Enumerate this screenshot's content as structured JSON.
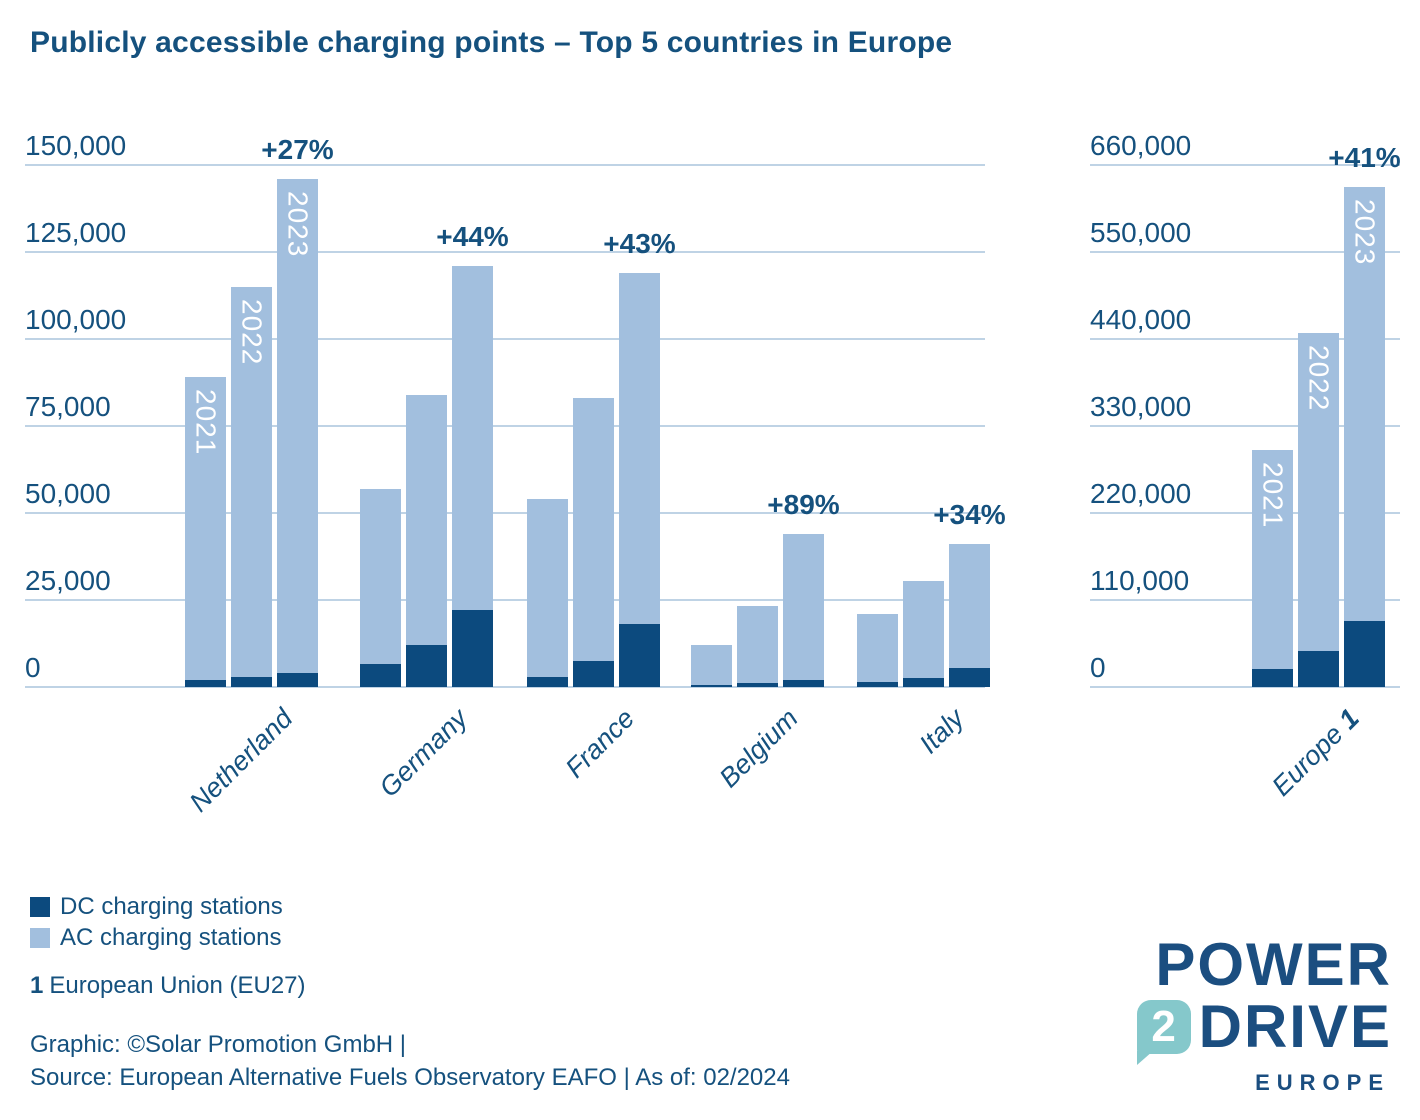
{
  "title": "Publicly accessible charging points – Top 5 countries in Europe",
  "colors": {
    "dc": "#0c4a7e",
    "ac": "#a2bfde",
    "text": "#15517e",
    "grid": "#bfd3e5",
    "logo_navy": "#1b4e80",
    "logo_teal": "#85c8cb"
  },
  "legend": [
    {
      "label": "DC charging stations",
      "color_key": "dc"
    },
    {
      "label": "AC charging stations",
      "color_key": "ac"
    }
  ],
  "footnote": {
    "marker": "1",
    "text": "European Union (EU27)"
  },
  "footer": {
    "line1": "Graphic: ©Solar Promotion GmbH |",
    "line2": "Source: European Alternative Fuels Observatory EAFO | As of: 02/2024"
  },
  "logo": {
    "line1": "POWER",
    "badge": "2",
    "line2": "DRIVE",
    "line3": "EUROPE"
  },
  "chart_data": [
    {
      "type": "bar",
      "stacked": true,
      "title": "Top 5 countries",
      "years": [
        "2021",
        "2022",
        "2023"
      ],
      "ylim": [
        0,
        150000
      ],
      "grid": true,
      "yticks": [
        {
          "v": 0,
          "label": "0"
        },
        {
          "v": 25000,
          "label": "25,000"
        },
        {
          "v": 50000,
          "label": "50,000"
        },
        {
          "v": 75000,
          "label": "75,000"
        },
        {
          "v": 100000,
          "label": "100,000"
        },
        {
          "v": 125000,
          "label": "125,000"
        },
        {
          "v": 150000,
          "label": "150,000"
        }
      ],
      "series_note": "totals = AC+DC stacked bar height; dc = dark bottom segment",
      "groups": [
        {
          "category": "Netherland",
          "year_labels": true,
          "totals": [
            89000,
            115000,
            146000
          ],
          "dc": [
            2000,
            3000,
            4000
          ],
          "growth_label": "+27%"
        },
        {
          "category": "Germany",
          "year_labels": false,
          "totals": [
            57000,
            84000,
            121000
          ],
          "dc": [
            6500,
            12000,
            22000
          ],
          "growth_label": "+44%"
        },
        {
          "category": "France",
          "year_labels": false,
          "totals": [
            54000,
            83000,
            119000
          ],
          "dc": [
            3000,
            7500,
            18000
          ],
          "growth_label": "+43%"
        },
        {
          "category": "Belgium",
          "year_labels": false,
          "totals": [
            12000,
            23300,
            44000
          ],
          "dc": [
            500,
            1100,
            2100
          ],
          "growth_label": "+89%"
        },
        {
          "category": "Italy",
          "year_labels": false,
          "totals": [
            21000,
            30600,
            41000
          ],
          "dc": [
            1300,
            2700,
            5500
          ],
          "growth_label": "+34%"
        }
      ]
    },
    {
      "type": "bar",
      "stacked": true,
      "title": "Europe (EU27)",
      "years": [
        "2021",
        "2022",
        "2023"
      ],
      "ylim": [
        0,
        660000
      ],
      "grid": true,
      "yticks": [
        {
          "v": 0,
          "label": "0"
        },
        {
          "v": 110000,
          "label": "110,000"
        },
        {
          "v": 220000,
          "label": "220,000"
        },
        {
          "v": 330000,
          "label": "330,000"
        },
        {
          "v": 440000,
          "label": "440,000"
        },
        {
          "v": 550000,
          "label": "550,000"
        },
        {
          "v": 660000,
          "label": "660,000"
        }
      ],
      "series_note": "totals = AC+DC stacked bar height; dc = dark bottom segment",
      "groups": [
        {
          "category": "Europe",
          "footnote_marker": "1",
          "year_labels": true,
          "totals": [
            300000,
            448000,
            632000
          ],
          "dc": [
            23000,
            45000,
            84000
          ],
          "growth_label": "+41%"
        }
      ]
    }
  ]
}
